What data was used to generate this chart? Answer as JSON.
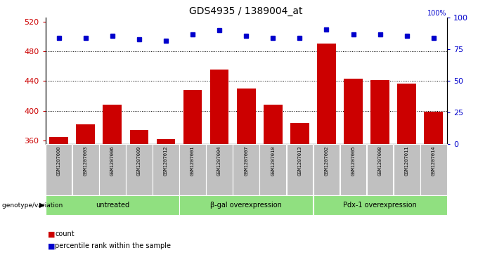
{
  "title": "GDS4935 / 1389004_at",
  "samples": [
    "GSM1207000",
    "GSM1207003",
    "GSM1207006",
    "GSM1207009",
    "GSM1207012",
    "GSM1207001",
    "GSM1207004",
    "GSM1207007",
    "GSM1207010",
    "GSM1207013",
    "GSM1207002",
    "GSM1207005",
    "GSM1207008",
    "GSM1207011",
    "GSM1207014"
  ],
  "counts": [
    365,
    382,
    408,
    374,
    362,
    428,
    455,
    430,
    408,
    383,
    490,
    443,
    441,
    436,
    399
  ],
  "percentiles": [
    84,
    84,
    86,
    83,
    82,
    87,
    90,
    86,
    84,
    84,
    91,
    87,
    87,
    86,
    84
  ],
  "groups": [
    {
      "label": "untreated",
      "start": 0,
      "end": 4
    },
    {
      "label": "β-gal overexpression",
      "start": 5,
      "end": 9
    },
    {
      "label": "Pdx-1 overexpression",
      "start": 10,
      "end": 14
    }
  ],
  "ylim_left": [
    355,
    525
  ],
  "ylim_right": [
    0,
    100
  ],
  "yticks_left": [
    360,
    400,
    440,
    480,
    520
  ],
  "yticks_right": [
    0,
    25,
    50,
    75,
    100
  ],
  "bar_color": "#cc0000",
  "dot_color": "#0000cc",
  "group_bg_color": "#90e080",
  "sample_bg_color": "#c0c0c0",
  "genotype_label": "genotype/variation",
  "legend_count": "count",
  "legend_percentile": "percentile rank within the sample",
  "fig_width": 6.8,
  "fig_height": 3.63
}
